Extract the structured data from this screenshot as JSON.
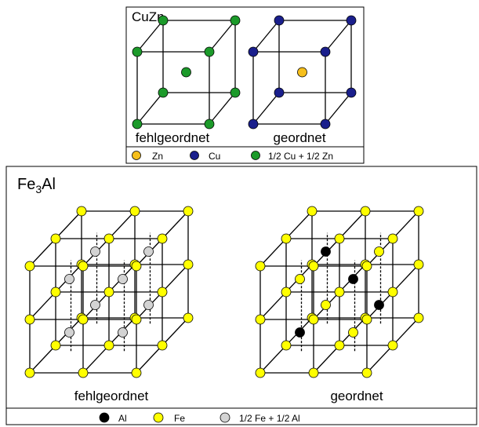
{
  "top_panel": {
    "title": "CuZn",
    "left_label": "fehlgeordnet",
    "right_label": "geordnet",
    "legend": [
      {
        "label": "Zn",
        "color": "#f6bf1c"
      },
      {
        "label": "Cu",
        "color": "#1a1f8c"
      },
      {
        "label": "1/2 Cu + 1/2 Zn",
        "color": "#1c9a2a"
      }
    ]
  },
  "bottom_panel": {
    "title_main": "Fe",
    "title_sub": "3",
    "title_tail": "Al",
    "left_label": "fehlgeordnet",
    "right_label": "geordnet",
    "legend": [
      {
        "label": "Al",
        "color": "#000000"
      },
      {
        "label": "Fe",
        "color": "#ffff00"
      },
      {
        "label": "1/2 Fe + 1/2 Al",
        "color": "#d3d3d3"
      }
    ]
  }
}
